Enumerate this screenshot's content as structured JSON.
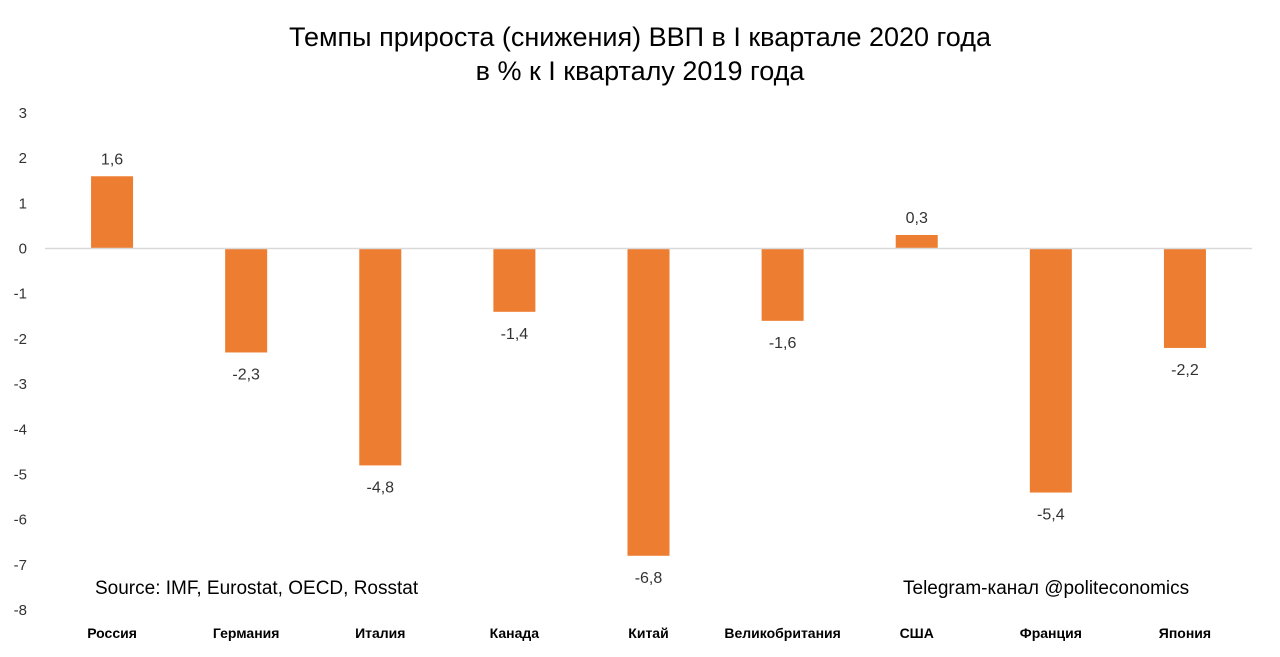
{
  "chart_data": {
    "type": "bar",
    "title_lines": [
      "Темпы прироста (снижения) ВВП в I квартале 2020 года",
      "в % к I кварталу 2019 года"
    ],
    "categories": [
      "Россия",
      "Германия",
      "Италия",
      "Канада",
      "Китай",
      "Великобритания",
      "США",
      "Франция",
      "Япония"
    ],
    "values": [
      1.6,
      -2.3,
      -4.8,
      -1.4,
      -6.8,
      -1.6,
      0.3,
      -5.4,
      -2.2
    ],
    "value_labels": [
      "1,6",
      "-2,3",
      "-4,8",
      "-1,4",
      "-6,8",
      "-1,6",
      "0,3",
      "-5,4",
      "-2,2"
    ],
    "ylim": [
      -8,
      3
    ],
    "yticks": [
      3,
      2,
      1,
      0,
      -1,
      -2,
      -3,
      -4,
      -5,
      -6,
      -7,
      -8
    ],
    "xlabel": "",
    "ylabel": "",
    "grid": false,
    "bar_color": "#ED7D31",
    "axis_color": "#D9D9D9",
    "source_note": "Source: IMF, Eurostat, OECD, Rosstat",
    "channel_note": "Telegram-канал @politeconomics"
  }
}
